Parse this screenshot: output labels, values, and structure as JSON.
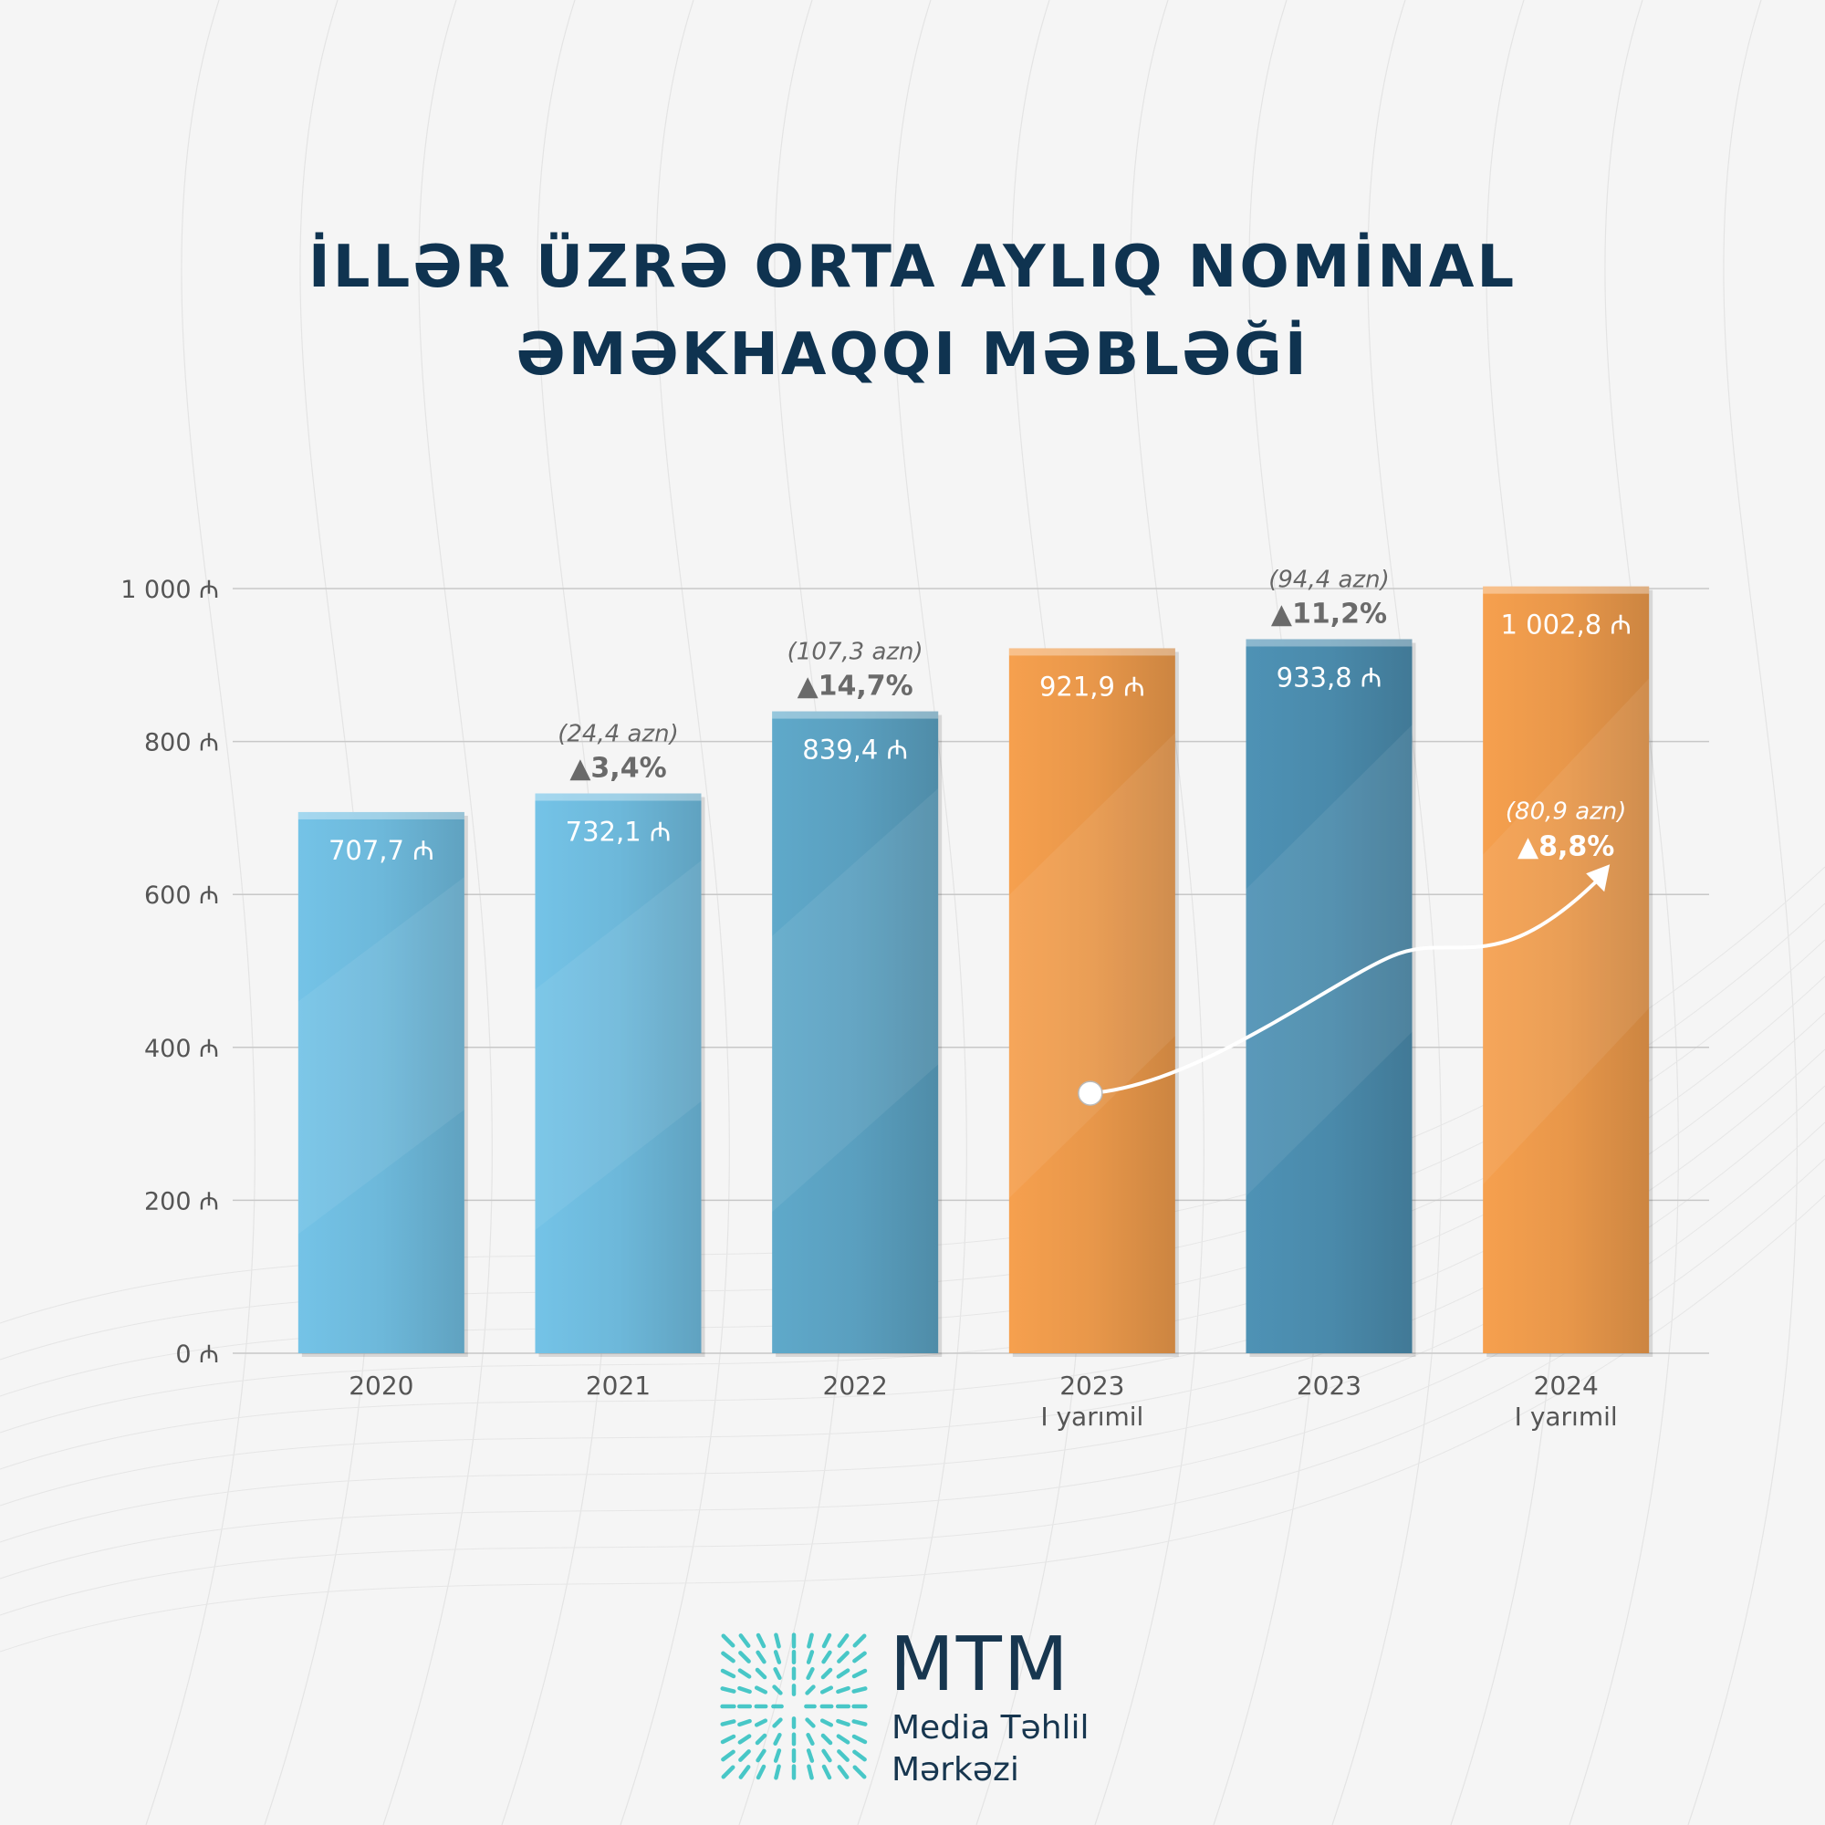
{
  "title_line1": "İLLƏR ÜZRƏ ORTA AYLIQ NOMİNAL",
  "title_line2": "ƏMƏKHAQQI MƏBLƏĞİ",
  "colors": {
    "light_blue": "#6db8da",
    "mid_blue": "#5a9fbf",
    "dark_blue": "#4a8aab",
    "orange": "#e8974a",
    "title": "#0f3350",
    "grid": "#c8c8c8",
    "axis_text": "#555555",
    "annotation_text": "#666666",
    "logo_teal": "#2bbfc0"
  },
  "chart_data": {
    "type": "bar",
    "categories": [
      "2020",
      "2021",
      "2022",
      "2023\nI yarımil",
      "2023",
      "2024\nI yarımil"
    ],
    "values": [
      707.7,
      732.1,
      839.4,
      921.9,
      933.8,
      1002.8
    ],
    "value_labels": [
      "707,7 ₼",
      "732,1 ₼",
      "839,4 ₼",
      "921,9 ₼",
      "933,8 ₼",
      "1 002,8 ₼"
    ],
    "bar_colors": [
      "light_blue",
      "light_blue",
      "mid_blue",
      "orange",
      "dark_blue",
      "orange"
    ],
    "ylim": [
      0,
      1000
    ],
    "yticks": [
      0,
      200,
      400,
      600,
      800,
      1000
    ],
    "ytick_labels": [
      "0 ₼",
      "200 ₼",
      "400 ₼",
      "600 ₼",
      "800 ₼",
      "1 000 ₼"
    ],
    "grid": true,
    "growth_annotations": [
      {
        "bar": 1,
        "amount": "(24,4 azn)",
        "percent": "▲3,4%"
      },
      {
        "bar": 2,
        "amount": "(107,3 azn)",
        "percent": "▲14,7%"
      },
      {
        "bar": 4,
        "amount": "(94,4 azn)",
        "percent": "▲11,2%"
      },
      {
        "bar": 5,
        "amount": "(80,9 azn)",
        "percent": "▲8,8%",
        "inside": true
      }
    ],
    "comparison_arrow": {
      "from_bar": 3,
      "to_bar": 5
    }
  },
  "logo": {
    "brand": "MTM",
    "subtitle_line1": "Media Təhlil",
    "subtitle_line2": "Mərkəzi"
  }
}
